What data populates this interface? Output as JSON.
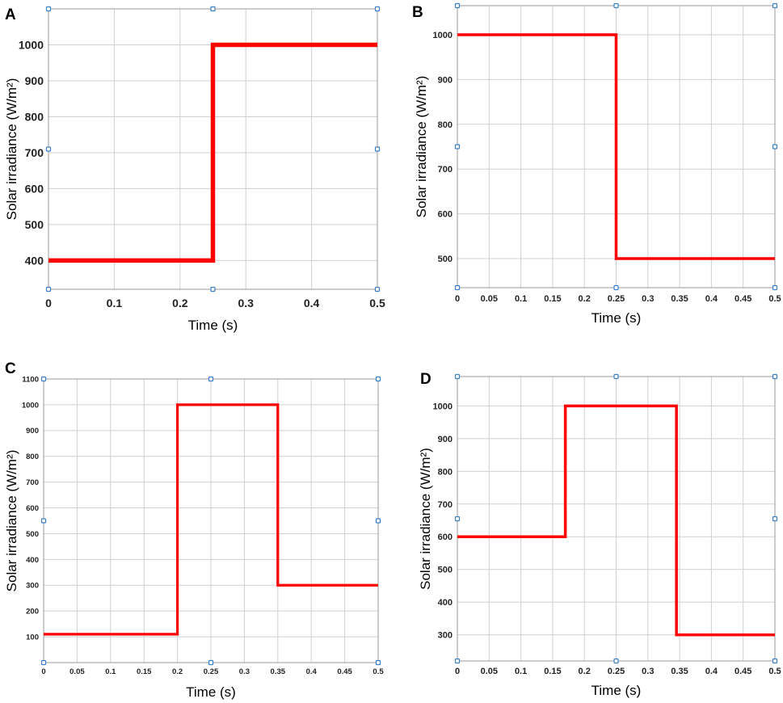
{
  "chart_data": [
    {
      "panel": "A",
      "type": "line",
      "xlabel": "Time (s)",
      "ylabel": "Solar irradiance (W/m²)",
      "xlim": [
        0,
        0.5
      ],
      "ylim": [
        320,
        1100
      ],
      "xticks": [
        0,
        0.1,
        0.2,
        0.3,
        0.4,
        0.5
      ],
      "xtick_labels": [
        "0",
        "0.1",
        "0.2",
        "0.3",
        "0.4",
        "0.5"
      ],
      "yticks": [
        400,
        500,
        600,
        700,
        800,
        900,
        1000
      ],
      "ytick_labels": [
        "400",
        "500",
        "600",
        "700",
        "800",
        "900",
        "1000"
      ],
      "grid": true,
      "series": [
        {
          "x": [
            0,
            0.25,
            0.25,
            0.5
          ],
          "y": [
            400,
            400,
            1000,
            1000
          ]
        }
      ],
      "color": "#ff0000"
    },
    {
      "panel": "B",
      "type": "line",
      "xlabel": "Time (s)",
      "ylabel": "Solar irradiance (W/m²)",
      "xlim": [
        0,
        0.5
      ],
      "ylim": [
        435,
        1065
      ],
      "xticks": [
        0,
        0.05,
        0.1,
        0.15,
        0.2,
        0.25,
        0.3,
        0.35,
        0.4,
        0.45,
        0.5
      ],
      "xtick_labels": [
        "0",
        "0.05",
        "0.1",
        "0.15",
        "0.2",
        "0.25",
        "0.3",
        "0.35",
        "0.4",
        "0.45",
        "0.5"
      ],
      "yticks": [
        500,
        600,
        700,
        800,
        900,
        1000
      ],
      "ytick_labels": [
        "500",
        "600",
        "700",
        "800",
        "900",
        "1000"
      ],
      "grid": true,
      "series": [
        {
          "x": [
            0,
            0.25,
            0.25,
            0.5
          ],
          "y": [
            1000,
            1000,
            500,
            500
          ]
        }
      ],
      "color": "#ff0000"
    },
    {
      "panel": "C",
      "type": "line",
      "xlabel": "Time (s)",
      "ylabel": "Solar irradiance (W/m²)",
      "xlim": [
        0,
        0.5
      ],
      "ylim": [
        0,
        1100
      ],
      "xticks": [
        0,
        0.05,
        0.1,
        0.15,
        0.2,
        0.25,
        0.3,
        0.35,
        0.4,
        0.45,
        0.5
      ],
      "xtick_labels": [
        "0",
        "0.05",
        "0.1",
        "0.15",
        "0.2",
        "0.25",
        "0.3",
        "0.35",
        "0.4",
        "0.45",
        "0.5"
      ],
      "yticks": [
        100,
        200,
        300,
        400,
        500,
        600,
        700,
        800,
        900,
        1000,
        1100
      ],
      "ytick_labels": [
        "100",
        "200",
        "300",
        "400",
        "500",
        "600",
        "700",
        "800",
        "900",
        "1000",
        "1100"
      ],
      "grid": true,
      "series": [
        {
          "x": [
            0,
            0.2,
            0.2,
            0.35,
            0.35,
            0.5
          ],
          "y": [
            110,
            110,
            1000,
            1000,
            300,
            300
          ]
        }
      ],
      "color": "#ff0000"
    },
    {
      "panel": "D",
      "type": "line",
      "xlabel": "Time (s)",
      "ylabel": "Solar irradiance (W/m²)",
      "xlim": [
        0,
        0.5
      ],
      "ylim": [
        220,
        1090
      ],
      "xticks": [
        0,
        0.05,
        0.1,
        0.15,
        0.2,
        0.25,
        0.3,
        0.35,
        0.4,
        0.45,
        0.5
      ],
      "xtick_labels": [
        "0",
        "0.05",
        "0.1",
        "0.15",
        "0.2",
        "0.25",
        "0.3",
        "0.35",
        "0.4",
        "0.45",
        "0.5"
      ],
      "yticks": [
        300,
        400,
        500,
        600,
        700,
        800,
        900,
        1000
      ],
      "ytick_labels": [
        "300",
        "400",
        "500",
        "600",
        "700",
        "800",
        "900",
        "1000"
      ],
      "grid": true,
      "series": [
        {
          "x": [
            0,
            0.17,
            0.17,
            0.345,
            0.345,
            0.5
          ],
          "y": [
            600,
            600,
            1000,
            1000,
            300,
            300
          ]
        }
      ],
      "color": "#ff0000"
    }
  ]
}
